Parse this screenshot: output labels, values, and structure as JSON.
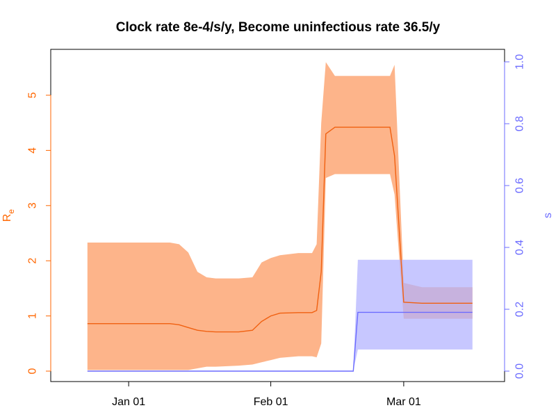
{
  "chart_data": {
    "type": "area",
    "title": "Clock rate 8e-4/s/y, Become uninfectious rate 36.5/y",
    "colors": {
      "left_axis": "#ff6600",
      "right_axis": "#6b6bff",
      "re_band": "#fdb48a",
      "re_line": "#f06010",
      "s_band": "#b2b2ff",
      "s_line": "#6b6bff"
    },
    "x_axis": {
      "type": "date",
      "ticks": [
        "Jan 01",
        "Feb 01",
        "Mar 01"
      ],
      "tick_dates": [
        "2020-01-01",
        "2020-02-01",
        "2020-03-01"
      ],
      "range": [
        "2019-12-15",
        "2020-03-23"
      ]
    },
    "left_axis": {
      "label": "R",
      "label_subscript": "e",
      "range": [
        0,
        5.8
      ],
      "ticks": [
        "0",
        "1",
        "2",
        "3",
        "4",
        "5"
      ]
    },
    "right_axis": {
      "label": "s",
      "range": [
        0,
        1.05
      ],
      "ticks": [
        "0.0",
        "0.2",
        "0.4",
        "0.6",
        "0.8",
        "1.0"
      ]
    },
    "series": [
      {
        "axis": "left",
        "kind": "line_with_band",
        "x": [
          "2019-12-23",
          "2020-01-01",
          "2020-01-10",
          "2020-01-12",
          "2020-01-14",
          "2020-01-16",
          "2020-01-18",
          "2020-01-20",
          "2020-01-25",
          "2020-01-28",
          "2020-01-30",
          "2020-02-01",
          "2020-02-03",
          "2020-02-07",
          "2020-02-10",
          "2020-02-11",
          "2020-02-12",
          "2020-02-13",
          "2020-02-15",
          "2020-02-20",
          "2020-02-23",
          "2020-02-27",
          "2020-02-28",
          "2020-03-01",
          "2020-03-05",
          "2020-03-10",
          "2020-03-16"
        ],
        "median": [
          0.86,
          0.86,
          0.86,
          0.84,
          0.79,
          0.74,
          0.72,
          0.71,
          0.71,
          0.74,
          0.9,
          1.0,
          1.05,
          1.06,
          1.06,
          1.1,
          1.8,
          4.3,
          4.42,
          4.42,
          4.42,
          4.42,
          3.9,
          1.25,
          1.23,
          1.23,
          1.23
        ],
        "lower": [
          0.02,
          0.02,
          0.02,
          0.02,
          0.02,
          0.05,
          0.08,
          0.08,
          0.1,
          0.12,
          0.16,
          0.2,
          0.24,
          0.27,
          0.27,
          0.25,
          0.5,
          3.5,
          3.57,
          3.57,
          3.57,
          3.57,
          3.2,
          0.95,
          0.95,
          0.95,
          0.95
        ],
        "upper": [
          2.33,
          2.33,
          2.33,
          2.3,
          2.15,
          1.8,
          1.7,
          1.68,
          1.68,
          1.7,
          1.97,
          2.05,
          2.1,
          2.14,
          2.14,
          2.3,
          4.5,
          5.6,
          5.35,
          5.35,
          5.35,
          5.35,
          5.55,
          1.6,
          1.52,
          1.52,
          1.52
        ]
      },
      {
        "axis": "right",
        "kind": "line_with_band",
        "x": [
          "2019-12-23",
          "2020-02-19",
          "2020-02-20",
          "2020-03-16"
        ],
        "median": [
          0.0,
          0.0,
          0.19,
          0.19
        ],
        "lower": [
          0.0,
          0.0,
          0.07,
          0.07
        ],
        "upper": [
          0.0,
          0.0,
          0.36,
          0.36
        ]
      }
    ],
    "grid": false,
    "legend": "none"
  }
}
